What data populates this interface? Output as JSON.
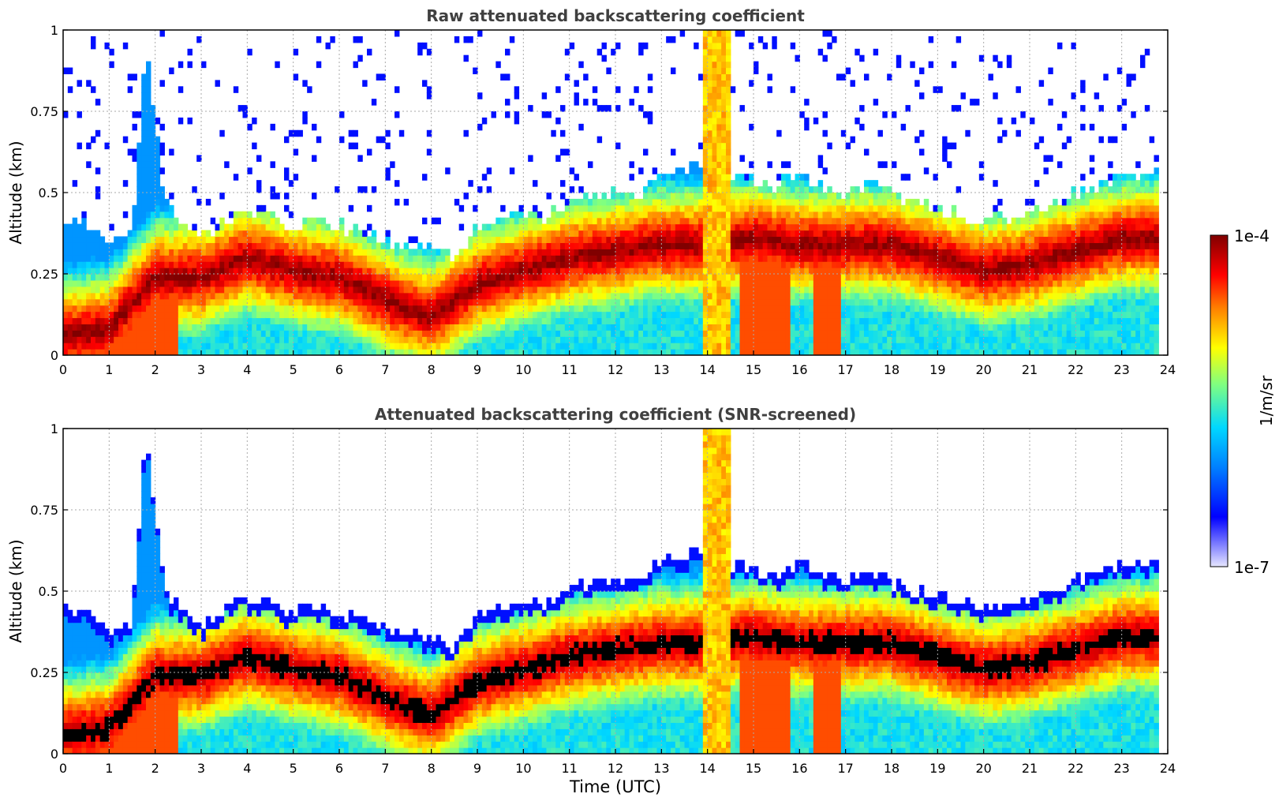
{
  "chart_data": [
    {
      "type": "heatmap",
      "title": "Raw attenuated backscattering coefficient",
      "xlabel": "",
      "ylabel": "Altitude (km)",
      "xlim": [
        0,
        24
      ],
      "ylim": [
        0,
        1
      ],
      "x_ticks": [
        "0",
        "1",
        "2",
        "3",
        "4",
        "5",
        "6",
        "7",
        "8",
        "9",
        "10",
        "11",
        "12",
        "13",
        "14",
        "15",
        "16",
        "17",
        "18",
        "19",
        "20",
        "21",
        "22",
        "23",
        "24"
      ],
      "y_ticks": [
        "0",
        "0.25",
        "0.5",
        "0.75",
        "1"
      ],
      "grid": true,
      "layer_top_km": [
        [
          0,
          0.42
        ],
        [
          0.5,
          0.4
        ],
        [
          1,
          0.34
        ],
        [
          1.5,
          0.38
        ],
        [
          1.8,
          0.95
        ],
        [
          2.2,
          0.48
        ],
        [
          2.5,
          0.42
        ],
        [
          3,
          0.36
        ],
        [
          3.5,
          0.42
        ],
        [
          4,
          0.45
        ],
        [
          4.5,
          0.43
        ],
        [
          5,
          0.4
        ],
        [
          5.5,
          0.42
        ],
        [
          6,
          0.4
        ],
        [
          6.5,
          0.38
        ],
        [
          7,
          0.36
        ],
        [
          7.5,
          0.34
        ],
        [
          8,
          0.32
        ],
        [
          8.5,
          0.3
        ],
        [
          9,
          0.4
        ],
        [
          9.5,
          0.42
        ],
        [
          10,
          0.44
        ],
        [
          10.5,
          0.43
        ],
        [
          11,
          0.48
        ],
        [
          11.5,
          0.5
        ],
        [
          12,
          0.5
        ],
        [
          12.5,
          0.5
        ],
        [
          13,
          0.56
        ],
        [
          13.5,
          0.58
        ],
        [
          14,
          0.6
        ],
        [
          14.5,
          0.55
        ],
        [
          15,
          0.54
        ],
        [
          15.5,
          0.52
        ],
        [
          16,
          0.56
        ],
        [
          16.5,
          0.52
        ],
        [
          17,
          0.5
        ],
        [
          17.5,
          0.53
        ],
        [
          18,
          0.5
        ],
        [
          18.5,
          0.47
        ],
        [
          19,
          0.45
        ],
        [
          19.5,
          0.43
        ],
        [
          20,
          0.42
        ],
        [
          20.5,
          0.42
        ],
        [
          21,
          0.45
        ],
        [
          21.5,
          0.47
        ],
        [
          22,
          0.5
        ],
        [
          22.5,
          0.52
        ],
        [
          23,
          0.55
        ],
        [
          23.8,
          0.57
        ]
      ],
      "layer_core_km": [
        [
          0,
          0.06
        ],
        [
          1,
          0.08
        ],
        [
          2,
          0.24
        ],
        [
          3,
          0.24
        ],
        [
          4,
          0.3
        ],
        [
          5,
          0.26
        ],
        [
          6,
          0.24
        ],
        [
          7,
          0.17
        ],
        [
          8,
          0.12
        ],
        [
          9,
          0.22
        ],
        [
          10,
          0.26
        ],
        [
          11,
          0.3
        ],
        [
          12,
          0.32
        ],
        [
          13,
          0.34
        ],
        [
          14,
          0.34
        ],
        [
          15,
          0.36
        ],
        [
          16,
          0.34
        ],
        [
          17,
          0.34
        ],
        [
          18,
          0.34
        ],
        [
          19,
          0.3
        ],
        [
          20,
          0.26
        ],
        [
          21,
          0.28
        ],
        [
          22,
          0.32
        ],
        [
          23,
          0.36
        ],
        [
          23.8,
          0.36
        ]
      ],
      "fog_events_utc": [
        [
          0,
          2.5
        ],
        [
          14.7,
          15.8
        ],
        [
          16.3,
          16.9
        ]
      ],
      "thick_plume_utc": [
        [
          13.9,
          14.5
        ]
      ]
    },
    {
      "type": "heatmap",
      "title": "Attenuated backscattering coefficient (SNR-screened)",
      "xlabel": "Time (UTC)",
      "ylabel": "Altitude (km)",
      "xlim": [
        0,
        24
      ],
      "ylim": [
        0,
        1
      ],
      "x_ticks": [
        "0",
        "1",
        "2",
        "3",
        "4",
        "5",
        "6",
        "7",
        "8",
        "9",
        "10",
        "11",
        "12",
        "13",
        "14",
        "15",
        "16",
        "17",
        "18",
        "19",
        "20",
        "21",
        "22",
        "23",
        "24"
      ],
      "y_ticks": [
        "0",
        "0.25",
        "0.5",
        "0.75",
        "1"
      ],
      "grid": true,
      "screened": true
    }
  ],
  "colorbar": {
    "max_label": "1e-4",
    "min_label": "1e-7",
    "unit_label": "1/m/sr",
    "scale": "log",
    "range": [
      1e-07,
      0.0001
    ],
    "colors": [
      "#e6e6ff",
      "#0000ff",
      "#0080ff",
      "#00d8ff",
      "#80ff80",
      "#ffff00",
      "#ff8000",
      "#ff0000",
      "#800000"
    ]
  }
}
